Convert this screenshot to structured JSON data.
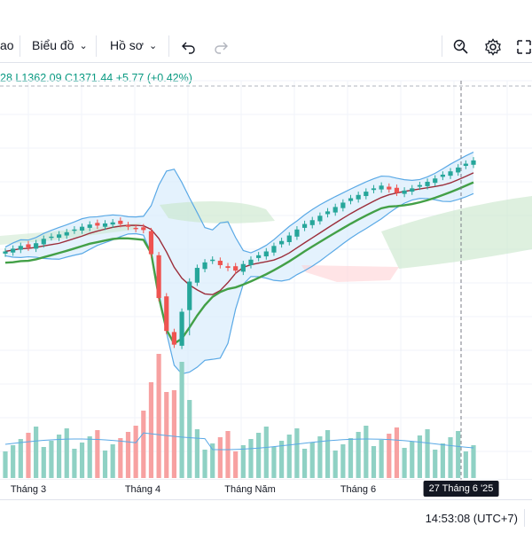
{
  "toolbar": {
    "partial_label": "ao",
    "chart_menu": "Biểu đồ",
    "profile_menu": "Hồ sơ",
    "icons": [
      "undo-icon",
      "redo-icon",
      "screenshot-search-icon",
      "settings-icon",
      "expand-icon"
    ]
  },
  "ohlc": {
    "high_tail": "28",
    "low_label": "L",
    "low_value": "1362.09",
    "close_label": "C",
    "close_value": "1371.44",
    "change": "+5.77",
    "change_pct": "(+0.42%)"
  },
  "time_axis": {
    "ticks": [
      "Tháng 3",
      "Tháng 4",
      "Tháng Năm",
      "Tháng 6"
    ],
    "crosshair_date": "27 Tháng 6 '25"
  },
  "status": {
    "clock": "14:53:08 (UTC+7)"
  },
  "colors": {
    "up": "#26a69a",
    "down": "#ef5350",
    "bollinger": "#5aa9e6",
    "bollinger_fill": "#dbeefc",
    "ma": "#9c2d3a",
    "green_line": "#43a047",
    "cloud_green": "#c8e6c9",
    "cloud_red": "#ffcdd2",
    "volume_up": "#8fd1c4",
    "volume_down": "#f7a1a1"
  },
  "chart_data": {
    "type": "candlestick",
    "series": [
      {
        "name": "",
        "values": [
          1205,
          1210,
          1215,
          1212,
          1220,
          1228,
          1232,
          1236,
          1240,
          1245,
          1250,
          1254,
          1252,
          1256,
          1258,
          1255,
          1250,
          1246,
          1244,
          1200,
          1120,
          1060,
          1035,
          1095,
          1150,
          1175,
          1185,
          1190,
          1180,
          1175,
          1170,
          1182,
          1190,
          1198,
          1205,
          1215,
          1224,
          1234,
          1245,
          1255,
          1262,
          1270,
          1278,
          1286,
          1294,
          1302,
          1308,
          1314,
          1320,
          1325,
          1318,
          1312,
          1316,
          1320,
          1326,
          1332,
          1338,
          1345,
          1351,
          1358,
          1365,
          1371
        ]
      }
    ]
  }
}
